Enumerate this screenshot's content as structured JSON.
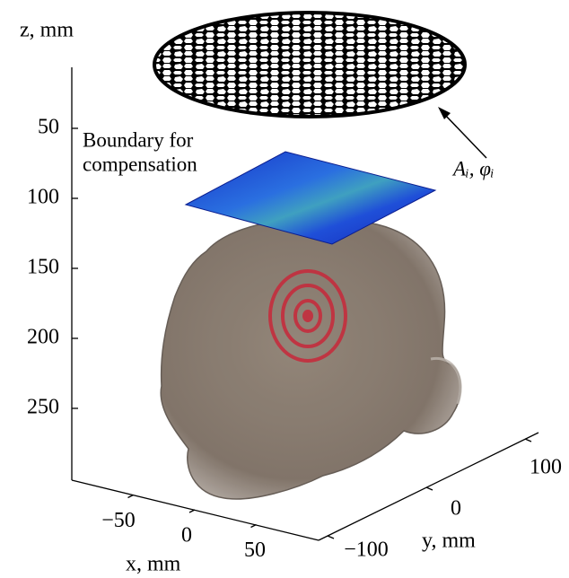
{
  "axes": {
    "z": {
      "label": "z, mm",
      "ticks": [
        50,
        100,
        150,
        200,
        250
      ]
    },
    "x": {
      "label": "x, mm",
      "ticks": [
        {
          "value": -50,
          "label": "−50"
        },
        0,
        50
      ]
    },
    "y": {
      "label": "y, mm",
      "ticks": [
        {
          "value": -100,
          "label": "−100"
        },
        0,
        100
      ]
    }
  },
  "annotations": {
    "boundary": [
      "Boundary for",
      "compensation"
    ],
    "array": "Aᵢ,  φᵢ"
  }
}
